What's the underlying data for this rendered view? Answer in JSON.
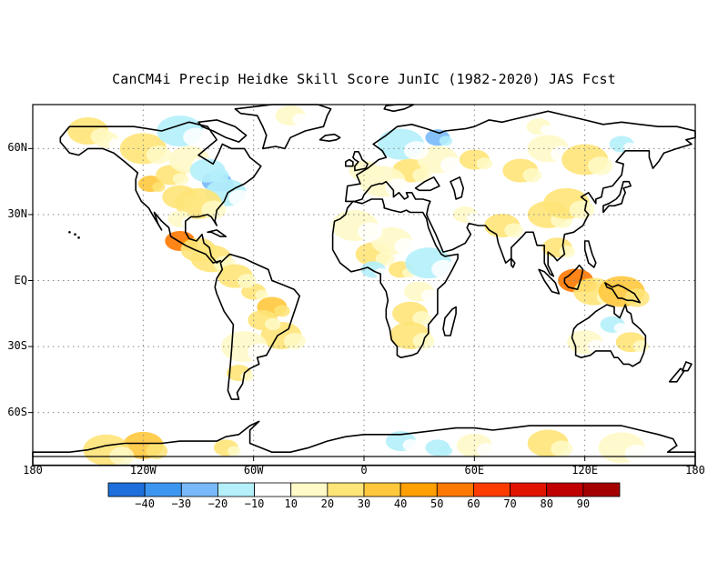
{
  "title": "CanCM4i Precip Heidke Skill Score JunIC (1982-2020) JAS Fcst",
  "map": {
    "projection": "equirectangular",
    "lon_range": [
      -180,
      180
    ],
    "lat_range": [
      -80,
      80
    ],
    "grid": "dotted",
    "lat_ticks": [
      {
        "lat": 60,
        "label": "60N"
      },
      {
        "lat": 30,
        "label": "30N"
      },
      {
        "lat": 0,
        "label": "EQ"
      },
      {
        "lat": -30,
        "label": "30S"
      },
      {
        "lat": -60,
        "label": "60S"
      }
    ],
    "lon_ticks": [
      {
        "lon": -180,
        "label": "180"
      },
      {
        "lon": -120,
        "label": "120W"
      },
      {
        "lon": -60,
        "label": "60W"
      },
      {
        "lon": 0,
        "label": "0"
      },
      {
        "lon": 60,
        "label": "60E"
      },
      {
        "lon": 120,
        "label": "120E"
      },
      {
        "lon": 180,
        "label": "180"
      }
    ]
  },
  "colorbar": {
    "colors": [
      "#1e6fdc",
      "#3c96f0",
      "#78b9fa",
      "#b4f0fa",
      "#ffffff",
      "#fffac8",
      "#ffe478",
      "#ffc83c",
      "#ffa000",
      "#ff7800",
      "#ff3c00",
      "#e11400",
      "#c00000",
      "#a50000"
    ],
    "labels": [
      "-40",
      "-30",
      "-20",
      "-10",
      "10",
      "20",
      "30",
      "40",
      "50",
      "60",
      "70",
      "80",
      "90"
    ]
  },
  "skill_patches": [
    {
      "lon": -116,
      "lat": 44,
      "v": 35
    },
    {
      "lon": -105,
      "lat": 48,
      "v": 20
    },
    {
      "lon": -100,
      "lat": 38,
      "v": 25
    },
    {
      "lon": -95,
      "lat": 55,
      "v": 15
    },
    {
      "lon": -120,
      "lat": 60,
      "v": 20
    },
    {
      "lon": -140,
      "lat": 64,
      "v": 15
    },
    {
      "lon": -80,
      "lat": 45,
      "v": -30
    },
    {
      "lon": -85,
      "lat": 50,
      "v": -20
    },
    {
      "lon": -75,
      "lat": 40,
      "v": -15
    },
    {
      "lon": -90,
      "lat": 35,
      "v": 20
    },
    {
      "lon": -100,
      "lat": 28,
      "v": 15
    },
    {
      "lon": -100,
      "lat": 18,
      "v": 50
    },
    {
      "lon": -90,
      "lat": 14,
      "v": 25
    },
    {
      "lon": -83,
      "lat": 10,
      "v": 20
    },
    {
      "lon": -100,
      "lat": 68,
      "v": -15
    },
    {
      "lon": -60,
      "lat": -5,
      "v": 25
    },
    {
      "lon": -50,
      "lat": -12,
      "v": 30
    },
    {
      "lon": -70,
      "lat": 2,
      "v": 20
    },
    {
      "lon": -45,
      "lat": -25,
      "v": 20
    },
    {
      "lon": -65,
      "lat": -30,
      "v": 15
    },
    {
      "lon": -68,
      "lat": -42,
      "v": 20
    },
    {
      "lon": -55,
      "lat": -18,
      "v": 25
    },
    {
      "lon": 5,
      "lat": 12,
      "v": 25
    },
    {
      "lon": 15,
      "lat": 18,
      "v": 15
    },
    {
      "lon": -5,
      "lat": 25,
      "v": 15
    },
    {
      "lon": 20,
      "lat": 5,
      "v": 20
    },
    {
      "lon": 30,
      "lat": -5,
      "v": 15
    },
    {
      "lon": 25,
      "lat": -15,
      "v": 20
    },
    {
      "lon": 25,
      "lat": -25,
      "v": 25
    },
    {
      "lon": 35,
      "lat": 8,
      "v": -15
    },
    {
      "lon": 5,
      "lat": 5,
      "v": -15
    },
    {
      "lon": 0,
      "lat": 50,
      "v": 15
    },
    {
      "lon": 25,
      "lat": 50,
      "v": 20
    },
    {
      "lon": 40,
      "lat": 55,
      "v": 15
    },
    {
      "lon": 20,
      "lat": 62,
      "v": -15
    },
    {
      "lon": 40,
      "lat": 65,
      "v": -25
    },
    {
      "lon": 60,
      "lat": 55,
      "v": 20
    },
    {
      "lon": 85,
      "lat": 50,
      "v": 20
    },
    {
      "lon": 100,
      "lat": 60,
      "v": 15
    },
    {
      "lon": 120,
      "lat": 55,
      "v": 20
    },
    {
      "lon": 140,
      "lat": 62,
      "v": -15
    },
    {
      "lon": 150,
      "lat": 70,
      "v": -10
    },
    {
      "lon": 75,
      "lat": 25,
      "v": 20
    },
    {
      "lon": 100,
      "lat": 30,
      "v": 25
    },
    {
      "lon": 110,
      "lat": 35,
      "v": 20
    },
    {
      "lon": 55,
      "lat": 30,
      "v": 15
    },
    {
      "lon": 105,
      "lat": 15,
      "v": 25
    },
    {
      "lon": 115,
      "lat": 0,
      "v": 50
    },
    {
      "lon": 125,
      "lat": -5,
      "v": 20
    },
    {
      "lon": 140,
      "lat": -5,
      "v": 35
    },
    {
      "lon": 135,
      "lat": -20,
      "v": -15
    },
    {
      "lon": 145,
      "lat": -28,
      "v": 20
    },
    {
      "lon": 120,
      "lat": -28,
      "v": 15
    },
    {
      "lon": -120,
      "lat": -75,
      "v": 30
    },
    {
      "lon": -140,
      "lat": -77,
      "v": 20
    },
    {
      "lon": -75,
      "lat": -76,
      "v": 20
    },
    {
      "lon": 20,
      "lat": -73,
      "v": -15
    },
    {
      "lon": 60,
      "lat": -75,
      "v": 15
    },
    {
      "lon": 100,
      "lat": -74,
      "v": 20
    },
    {
      "lon": 140,
      "lat": -76,
      "v": 15
    },
    {
      "lon": 40,
      "lat": -76,
      "v": -20
    },
    {
      "lon": -40,
      "lat": 75,
      "v": 15
    },
    {
      "lon": -60,
      "lat": 70,
      "v": -10
    },
    {
      "lon": -150,
      "lat": 68,
      "v": 20
    },
    {
      "lon": 10,
      "lat": 45,
      "v": 15
    },
    {
      "lon": 95,
      "lat": 70,
      "v": 15
    }
  ]
}
